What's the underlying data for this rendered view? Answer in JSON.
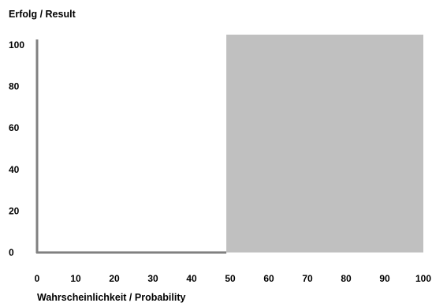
{
  "chart_data": {
    "type": "area",
    "title": "",
    "ylabel": "Erfolg / Result",
    "xlabel": "Wahrscheinlichkeit  / Probability",
    "xlim": [
      0,
      100
    ],
    "ylim": [
      0,
      100
    ],
    "x_ticks": [
      "0",
      "10",
      "20",
      "30",
      "40",
      "50",
      "60",
      "70",
      "80",
      "90",
      "100"
    ],
    "y_ticks": [
      "100",
      "80",
      "60",
      "40",
      "20",
      "0"
    ],
    "grid": false,
    "legend": "none",
    "series": [
      {
        "x": [
          0,
          49,
          49,
          100
        ],
        "values": [
          0,
          0,
          105,
          105
        ],
        "color": "#c0c0c0"
      }
    ],
    "axis_color": "#808080"
  }
}
